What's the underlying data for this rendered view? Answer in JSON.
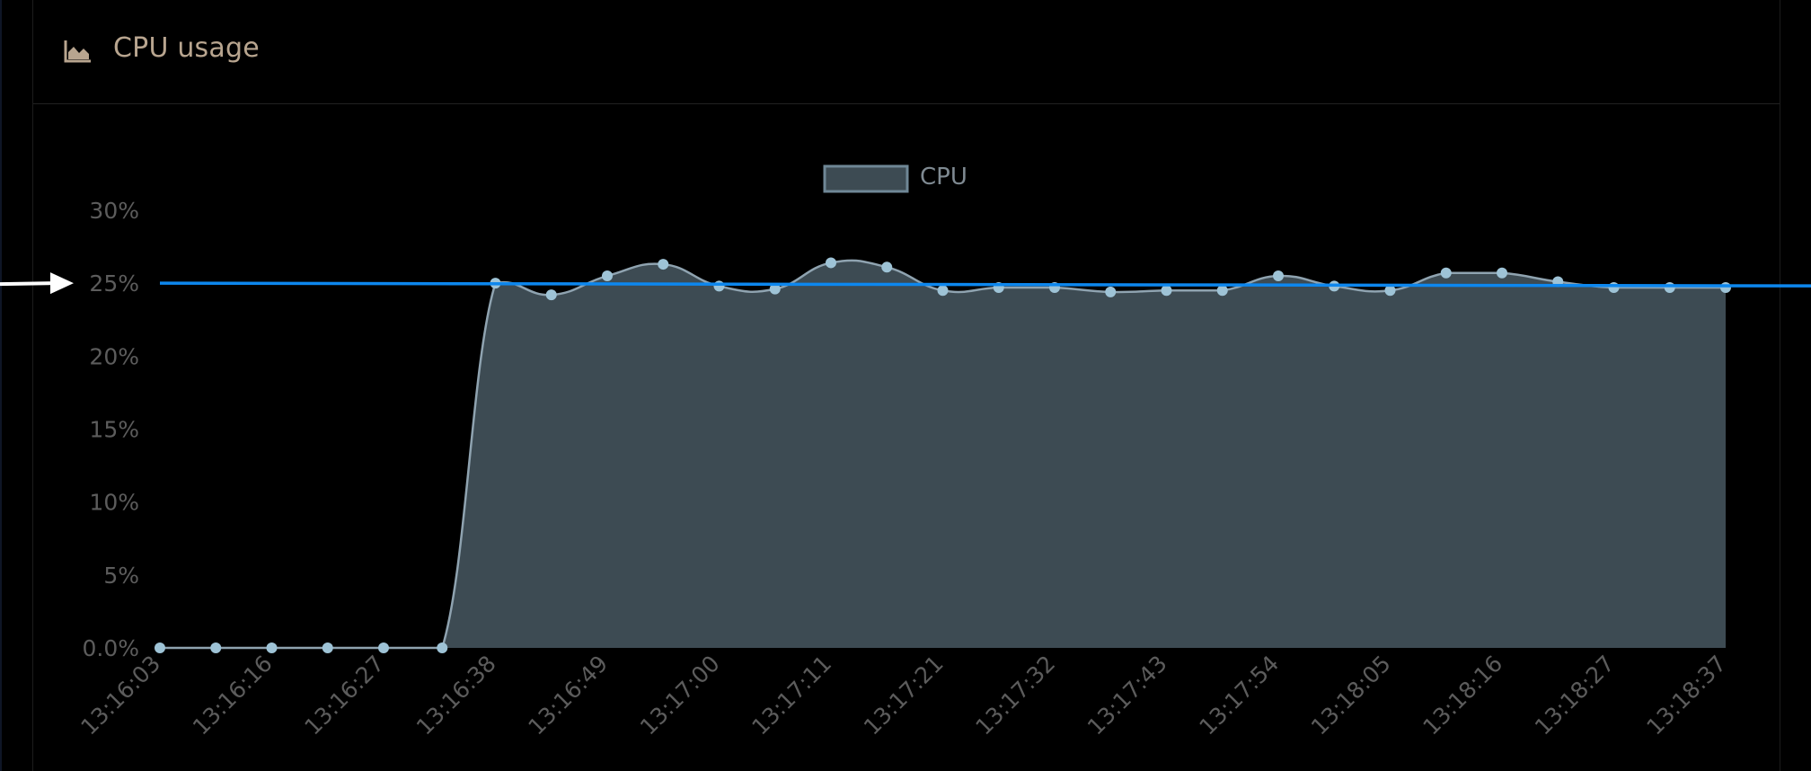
{
  "panel": {
    "title": "CPU usage",
    "icon": "area-chart-icon"
  },
  "colors": {
    "background": "#000000",
    "area_fill": "#3d4b53",
    "series_line": "#8fa3b0",
    "point": "#9ec3d6",
    "reference_line": "#0d87ee",
    "annotation_arrow": "#ffffff",
    "title": "#b8a58f"
  },
  "chart_data": {
    "type": "area",
    "legend": {
      "position": "top-center",
      "entries": [
        "CPU"
      ]
    },
    "y_ticks": [
      "0.0%",
      "5%",
      "10%",
      "15%",
      "20%",
      "25%",
      "30%"
    ],
    "ylim": [
      0,
      30
    ],
    "grid": false,
    "x_labels": [
      "13:16:03",
      "13:16:16",
      "13:16:27",
      "13:16:38",
      "13:16:49",
      "13:17:00",
      "13:17:11",
      "13:17:21",
      "13:17:32",
      "13:17:43",
      "13:17:54",
      "13:18:05",
      "13:18:16",
      "13:18:27",
      "13:18:37"
    ],
    "series": [
      {
        "name": "CPU",
        "values": [
          0,
          0,
          0,
          0,
          0,
          0,
          25.0,
          24.2,
          25.5,
          26.3,
          24.8,
          24.6,
          26.4,
          26.1,
          24.5,
          24.7,
          24.7,
          24.4,
          24.5,
          24.5,
          25.5,
          24.8,
          24.5,
          25.7,
          25.7,
          25.1,
          24.7,
          24.7,
          24.7
        ]
      }
    ],
    "reference_line": {
      "value": 25,
      "label": "25%"
    },
    "annotations": [
      {
        "type": "arrow",
        "points_to": "25%"
      }
    ]
  }
}
